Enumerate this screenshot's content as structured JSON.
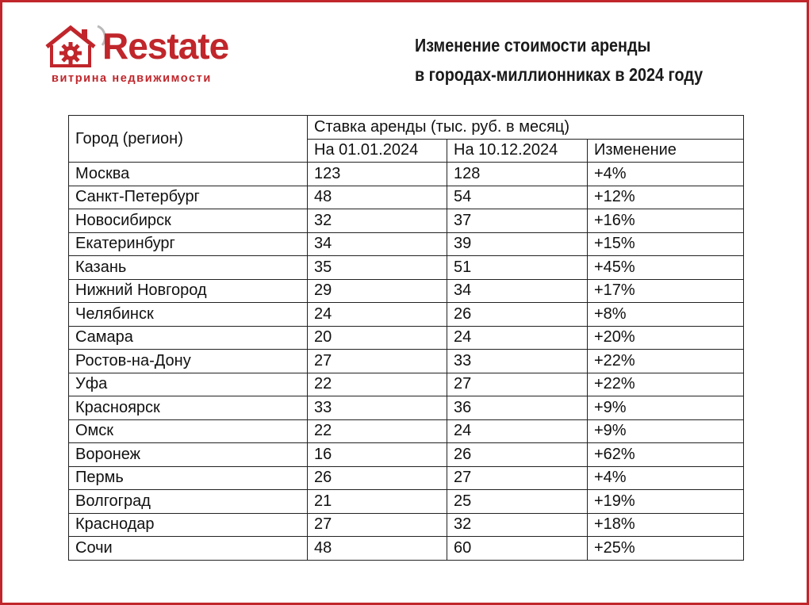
{
  "brand": {
    "name": "Restate",
    "tagline": "витрина недвижимости",
    "color": "#c0262b"
  },
  "title": {
    "line1": "Изменение стоимости аренды",
    "line2": "в городах-миллионниках в 2024 году"
  },
  "table": {
    "city_header": "Город (регион)",
    "group_header": "Ставка аренды (тыс. руб. в месяц)",
    "columns": [
      "На 01.01.2024",
      "На 10.12.2024",
      "Изменение"
    ],
    "rows": [
      {
        "city": "Москва",
        "jan": "123",
        "dec": "128",
        "change": "+4%"
      },
      {
        "city": "Санкт-Петербург",
        "jan": "48",
        "dec": "54",
        "change": "+12%"
      },
      {
        "city": "Новосибирск",
        "jan": "32",
        "dec": "37",
        "change": "+16%"
      },
      {
        "city": "Екатеринбург",
        "jan": "34",
        "dec": "39",
        "change": "+15%"
      },
      {
        "city": "Казань",
        "jan": "35",
        "dec": "51",
        "change": "+45%"
      },
      {
        "city": "Нижний Новгород",
        "jan": "29",
        "dec": "34",
        "change": "+17%"
      },
      {
        "city": "Челябинск",
        "jan": "24",
        "dec": "26",
        "change": "+8%"
      },
      {
        "city": "Самара",
        "jan": "20",
        "dec": "24",
        "change": "+20%"
      },
      {
        "city": "Ростов-на-Дону",
        "jan": "27",
        "dec": "33",
        "change": "+22%"
      },
      {
        "city": "Уфа",
        "jan": "22",
        "dec": "27",
        "change": "+22%"
      },
      {
        "city": "Красноярск",
        "jan": "33",
        "dec": "36",
        "change": "+9%"
      },
      {
        "city": "Омск",
        "jan": "22",
        "dec": "24",
        "change": "+9%"
      },
      {
        "city": "Воронеж",
        "jan": "16",
        "dec": "26",
        "change": "+62%"
      },
      {
        "city": "Пермь",
        "jan": "26",
        "dec": "27",
        "change": "+4%"
      },
      {
        "city": "Волгоград",
        "jan": "21",
        "dec": "25",
        "change": "+19%"
      },
      {
        "city": "Краснодар",
        "jan": "27",
        "dec": "32",
        "change": "+18%"
      },
      {
        "city": "Сочи",
        "jan": "48",
        "dec": "60",
        "change": "+25%"
      }
    ]
  }
}
